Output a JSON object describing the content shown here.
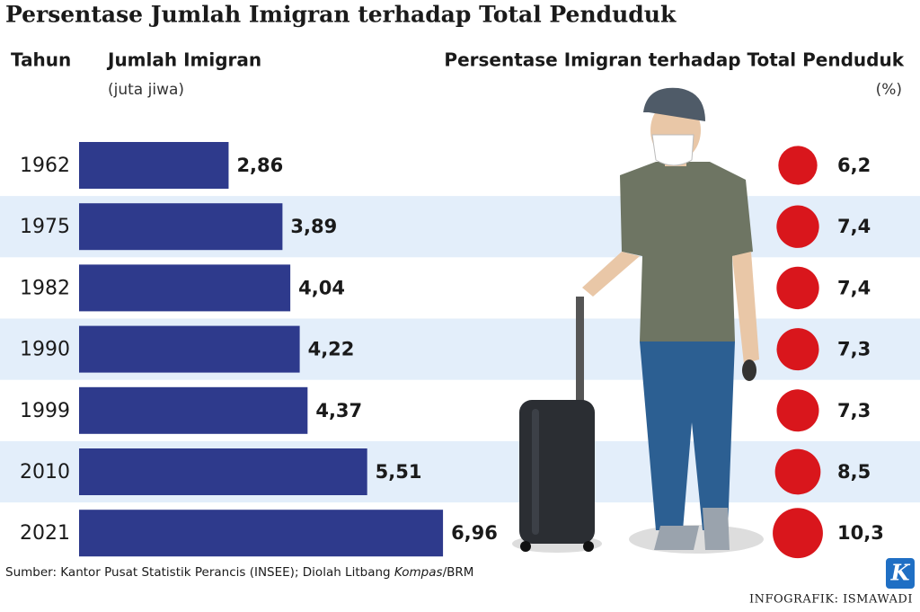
{
  "chart_data": {
    "type": "bar",
    "title": "Persentase Jumlah Imigran terhadap Total Penduduk",
    "category_header": "Tahun",
    "categories": [
      "1962",
      "1975",
      "1982",
      "1990",
      "1999",
      "2010",
      "2021"
    ],
    "series": [
      {
        "name": "Jumlah Imigran",
        "unit": "(juta jiwa)",
        "color": "#2e3a8c",
        "values": [
          2.86,
          3.89,
          4.04,
          4.22,
          4.37,
          5.51,
          6.96
        ],
        "value_labels": [
          "2,86",
          "3,89",
          "4,04",
          "4,22",
          "4,37",
          "5,51",
          "6,96"
        ]
      },
      {
        "name": "Persentase Imigran terhadap Total Penduduk",
        "unit": "(%)",
        "color": "#d9161c",
        "values": [
          6.2,
          7.4,
          7.4,
          7.3,
          7.3,
          8.5,
          10.3
        ],
        "value_labels": [
          "6,2",
          "7,4",
          "7,4",
          "7,3",
          "7,3",
          "8,5",
          "10,3"
        ]
      }
    ],
    "band_color": "#e3eefa",
    "source": [
      "Sumber: Kantor Pusat Statistik Perancis (INSEE); Diolah Litbang ",
      "Kompas",
      "/BRM"
    ],
    "logo": "K",
    "credit": "INFOGRAFIK: ISMAWADI"
  }
}
